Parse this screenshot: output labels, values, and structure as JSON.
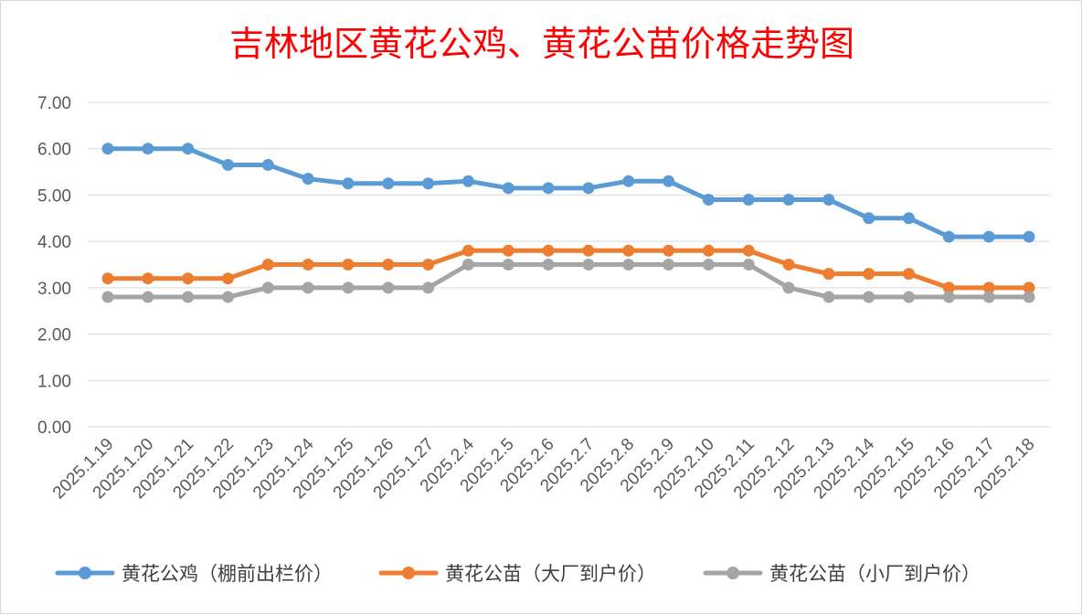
{
  "colors": {
    "series1": "#5b9bd5",
    "series2": "#ed7d31",
    "series3": "#a5a5a5",
    "title": "#ff0000"
  },
  "chart_data": {
    "type": "line",
    "title": "吉林地区黄花公鸡、黄花公苗价格走势图",
    "xlabel": "",
    "ylabel": "",
    "ylim": [
      0,
      7
    ],
    "yticks": [
      "0.00",
      "1.00",
      "2.00",
      "3.00",
      "4.00",
      "5.00",
      "6.00",
      "7.00"
    ],
    "grid": true,
    "legend_position": "bottom",
    "categories": [
      "2025.1.19",
      "2025.1.20",
      "2025.1.21",
      "2025.1.22",
      "2025.1.23",
      "2025.1.24",
      "2025.1.25",
      "2025.1.26",
      "2025.1.27",
      "2025.2.4",
      "2025.2.5",
      "2025.2.6",
      "2025.2.7",
      "2025.2.8",
      "2025.2.9",
      "2025.2.10",
      "2025.2.11",
      "2025.2.12",
      "2025.2.13",
      "2025.2.14",
      "2025.2.15",
      "2025.2.16",
      "2025.2.17",
      "2025.2.18"
    ],
    "series": [
      {
        "name": "黄花公鸡（棚前出栏价）",
        "values": [
          6.0,
          6.0,
          6.0,
          5.65,
          5.65,
          5.35,
          5.25,
          5.25,
          5.25,
          5.3,
          5.15,
          5.15,
          5.15,
          5.3,
          5.3,
          4.9,
          4.9,
          4.9,
          4.9,
          4.5,
          4.5,
          4.1,
          4.1,
          4.1
        ]
      },
      {
        "name": "黄花公苗（大厂到户价）",
        "values": [
          3.2,
          3.2,
          3.2,
          3.2,
          3.5,
          3.5,
          3.5,
          3.5,
          3.5,
          3.8,
          3.8,
          3.8,
          3.8,
          3.8,
          3.8,
          3.8,
          3.8,
          3.5,
          3.3,
          3.3,
          3.3,
          3.0,
          3.0,
          3.0
        ]
      },
      {
        "name": "黄花公苗（小厂到户价）",
        "values": [
          2.8,
          2.8,
          2.8,
          2.8,
          3.0,
          3.0,
          3.0,
          3.0,
          3.0,
          3.5,
          3.5,
          3.5,
          3.5,
          3.5,
          3.5,
          3.5,
          3.5,
          3.0,
          2.8,
          2.8,
          2.8,
          2.8,
          2.8,
          2.8
        ]
      }
    ]
  }
}
